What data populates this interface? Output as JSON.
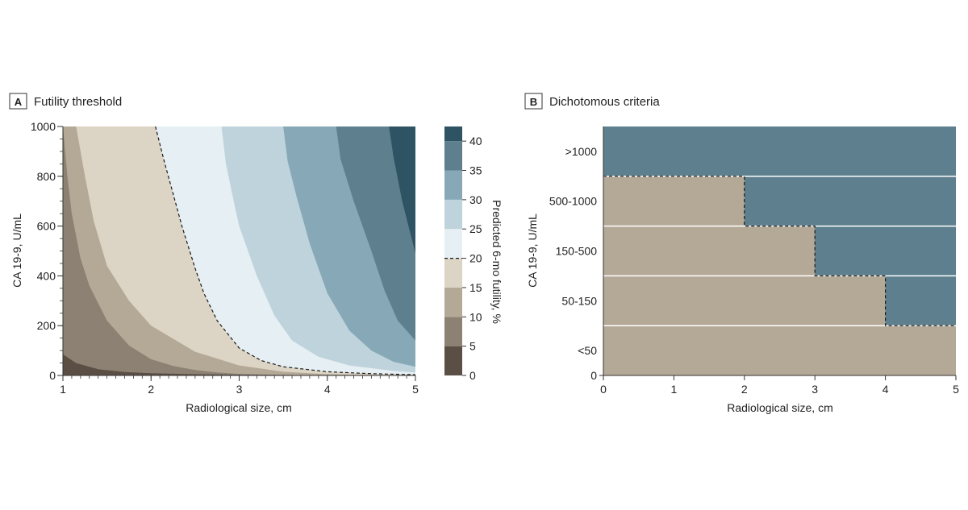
{
  "panels": {
    "a": {
      "letter": "A",
      "title": "Futility threshold"
    },
    "b": {
      "letter": "B",
      "title": "Dichotomous criteria"
    }
  },
  "chart_data": [
    {
      "type": "heatmap",
      "panel": "A",
      "title": "Futility threshold",
      "xlabel": "Radiological size, cm",
      "ylabel": "CA 19-9, U/mL",
      "xlim": [
        1,
        5
      ],
      "ylim": [
        0,
        1000
      ],
      "x_ticks": [
        1,
        2,
        3,
        4,
        5
      ],
      "y_ticks": [
        0,
        200,
        400,
        600,
        800,
        1000
      ],
      "x_minor_step": 0.1,
      "y_minor_step": 50,
      "colorbar": {
        "label": "Predicted 6-mo futility, %",
        "ticks": [
          0,
          5,
          10,
          15,
          20,
          25,
          30,
          35,
          40
        ],
        "range": [
          0,
          42.5
        ],
        "bands": [
          {
            "from": 0,
            "to": 5,
            "color": "#5b4f45"
          },
          {
            "from": 5,
            "to": 10,
            "color": "#8c8172"
          },
          {
            "from": 10,
            "to": 15,
            "color": "#b4a996"
          },
          {
            "from": 15,
            "to": 20,
            "color": "#dcd4c4"
          },
          {
            "from": 20,
            "to": 25,
            "color": "#e6eff4"
          },
          {
            "from": 25,
            "to": 30,
            "color": "#bfd3dc"
          },
          {
            "from": 30,
            "to": 35,
            "color": "#87a9b7"
          },
          {
            "from": 35,
            "to": 40,
            "color": "#5e7f8d"
          },
          {
            "from": 40,
            "to": 42.5,
            "color": "#2e5362"
          }
        ],
        "dashed_at": 20
      },
      "contours": [
        {
          "level": 5,
          "points": [
            [
              1.0,
              85
            ],
            [
              1.15,
              50
            ],
            [
              1.4,
              25
            ],
            [
              1.7,
              14
            ],
            [
              2.0,
              9
            ],
            [
              2.5,
              5
            ],
            [
              3.0,
              3
            ],
            [
              3.5,
              2
            ],
            [
              4.0,
              1
            ]
          ]
        },
        {
          "level": 10,
          "points": [
            [
              1.0,
              1000
            ],
            [
              1.05,
              800
            ],
            [
              1.1,
              650
            ],
            [
              1.2,
              470
            ],
            [
              1.3,
              360
            ],
            [
              1.5,
              220
            ],
            [
              1.75,
              120
            ],
            [
              2.0,
              65
            ],
            [
              2.25,
              38
            ],
            [
              2.5,
              22
            ],
            [
              2.75,
              12
            ],
            [
              3.0,
              6
            ],
            [
              3.5,
              2
            ],
            [
              4.0,
              1
            ]
          ]
        },
        {
          "level": 15,
          "points": [
            [
              1.15,
              1000
            ],
            [
              1.25,
              800
            ],
            [
              1.35,
              620
            ],
            [
              1.5,
              440
            ],
            [
              1.75,
              300
            ],
            [
              2.0,
              200
            ],
            [
              2.5,
              95
            ],
            [
              3.0,
              40
            ],
            [
              3.5,
              15
            ],
            [
              4.0,
              5
            ],
            [
              4.5,
              2
            ],
            [
              5.0,
              1
            ]
          ]
        },
        {
          "level": 20,
          "points": [
            [
              2.05,
              1000
            ],
            [
              2.15,
              860
            ],
            [
              2.25,
              730
            ],
            [
              2.35,
              600
            ],
            [
              2.5,
              430
            ],
            [
              2.6,
              330
            ],
            [
              2.75,
              220
            ],
            [
              3.0,
              110
            ],
            [
              3.25,
              60
            ],
            [
              3.5,
              35
            ],
            [
              4.0,
              15
            ],
            [
              4.5,
              7
            ],
            [
              5.0,
              3
            ]
          ]
        },
        {
          "level": 25,
          "points": [
            [
              2.8,
              1000
            ],
            [
              2.85,
              850
            ],
            [
              2.95,
              680
            ],
            [
              3.0,
              600
            ],
            [
              3.2,
              400
            ],
            [
              3.4,
              240
            ],
            [
              3.6,
              140
            ],
            [
              3.9,
              75
            ],
            [
              4.25,
              40
            ],
            [
              4.75,
              18
            ],
            [
              5.0,
              12
            ]
          ]
        },
        {
          "level": 30,
          "points": [
            [
              3.5,
              1000
            ],
            [
              3.55,
              860
            ],
            [
              3.65,
              720
            ],
            [
              3.8,
              530
            ],
            [
              4.0,
              330
            ],
            [
              4.25,
              180
            ],
            [
              4.5,
              100
            ],
            [
              4.75,
              55
            ],
            [
              5.0,
              35
            ]
          ]
        },
        {
          "level": 35,
          "points": [
            [
              4.1,
              1000
            ],
            [
              4.15,
              870
            ],
            [
              4.3,
              700
            ],
            [
              4.5,
              500
            ],
            [
              4.65,
              340
            ],
            [
              4.8,
              220
            ],
            [
              5.0,
              140
            ]
          ]
        },
        {
          "level": 40,
          "points": [
            [
              4.7,
              1000
            ],
            [
              4.75,
              880
            ],
            [
              4.85,
              700
            ],
            [
              5.0,
              490
            ]
          ]
        }
      ]
    },
    {
      "type": "heatmap",
      "panel": "B",
      "title": "Dichotomous criteria",
      "xlabel": "Radiological size, cm",
      "ylabel": "CA 19-9, U/mL",
      "xlim": [
        0,
        5
      ],
      "x_ticks": [
        0,
        1,
        2,
        3,
        4,
        5
      ],
      "y_zero_label": "0",
      "colors": {
        "low": "#b4a996",
        "high": "#5e7f8d"
      },
      "rows": [
        {
          "label": ">1000",
          "high_from_size": 0
        },
        {
          "label": "500-1000",
          "high_from_size": 2
        },
        {
          "label": "150-500",
          "high_from_size": 3
        },
        {
          "label": "50-150",
          "high_from_size": 4
        },
        {
          "label": "<50",
          "high_from_size": null
        }
      ]
    }
  ]
}
